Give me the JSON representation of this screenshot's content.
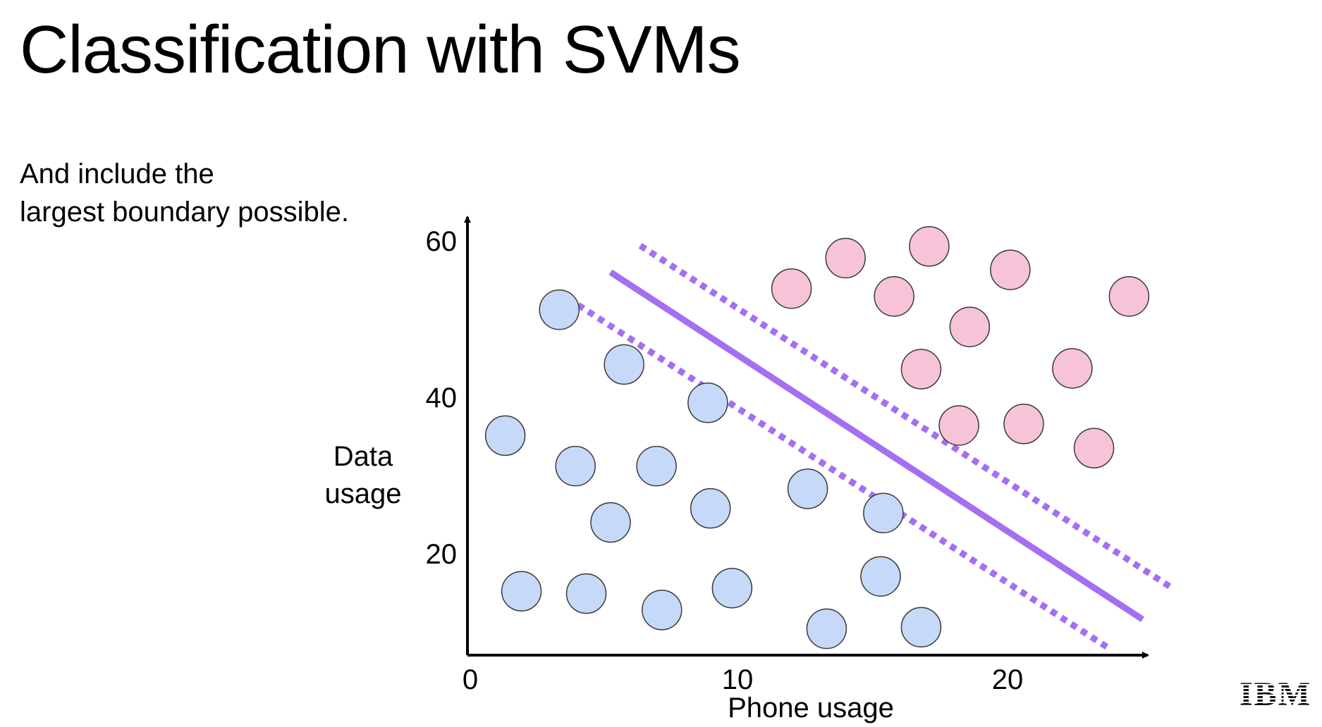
{
  "slide": {
    "title": "Classification with SVMs",
    "subtitle_lines": [
      "And include the",
      "largest boundary possible."
    ]
  },
  "logo": {
    "text": "IBM"
  },
  "chart_data": {
    "type": "scatter",
    "title": "",
    "xlabel": "Phone usage",
    "ylabel_lines": [
      "Data",
      "usage"
    ],
    "xlim": [
      0,
      25
    ],
    "ylim": [
      5,
      60
    ],
    "xticks": [
      0,
      10,
      20
    ],
    "yticks": [
      20,
      40,
      60
    ],
    "grid": false,
    "legend": "none",
    "series": [
      {
        "color": "#c6d9f8",
        "points": [
          [
            3.4,
            51.2
          ],
          [
            5.8,
            44.2
          ],
          [
            8.9,
            39.3
          ],
          [
            1.4,
            35.1
          ],
          [
            4.0,
            31.2
          ],
          [
            7.0,
            31.2
          ],
          [
            5.3,
            24.0
          ],
          [
            9.0,
            25.8
          ],
          [
            12.6,
            28.3
          ],
          [
            15.4,
            25.2
          ],
          [
            2.0,
            15.2
          ],
          [
            4.4,
            14.9
          ],
          [
            7.2,
            12.8
          ],
          [
            9.8,
            15.6
          ],
          [
            15.3,
            17.1
          ],
          [
            13.3,
            10.4
          ],
          [
            16.8,
            10.6
          ]
        ]
      },
      {
        "color": "#f7c3d9",
        "points": [
          [
            12.0,
            53.9
          ],
          [
            14.0,
            57.8
          ],
          [
            17.1,
            59.3
          ],
          [
            15.8,
            52.9
          ],
          [
            20.1,
            56.3
          ],
          [
            18.6,
            49.0
          ],
          [
            16.8,
            43.6
          ],
          [
            24.5,
            52.9
          ],
          [
            22.4,
            43.7
          ],
          [
            18.2,
            36.4
          ],
          [
            20.6,
            36.6
          ],
          [
            23.2,
            33.5
          ]
        ]
      }
    ],
    "boundaries": [
      {
        "style": "solid",
        "x": [
          5.3,
          25.0
        ],
        "y": [
          56.0,
          11.6
        ],
        "color": "#a46ff0"
      },
      {
        "style": "dotted",
        "x": [
          6.4,
          26.1
        ],
        "y": [
          59.4,
          15.6
        ],
        "color": "#a46ff0"
      },
      {
        "style": "dotted",
        "x": [
          4.1,
          23.8
        ],
        "y": [
          51.8,
          7.8
        ],
        "color": "#a46ff0"
      }
    ]
  }
}
